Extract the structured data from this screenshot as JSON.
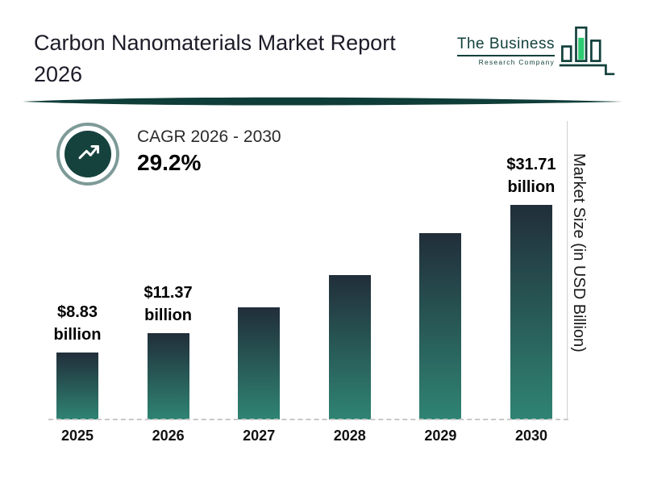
{
  "header": {
    "title": "Carbon Nanomaterials Market Report 2026",
    "logo": {
      "name": "The Business",
      "subname": "Research Company"
    }
  },
  "cagr": {
    "label": "CAGR 2026 - 2030",
    "value": "29.2%"
  },
  "y_axis_label": "Market Size (in USD Billion)",
  "chart_data": {
    "type": "bar",
    "title": "Carbon Nanomaterials Market Report 2026",
    "categories": [
      "2025",
      "2026",
      "2027",
      "2028",
      "2029",
      "2030"
    ],
    "values": [
      8.83,
      11.37,
      14.7,
      19.0,
      24.5,
      31.71
    ],
    "value_labels": [
      {
        "line1": "$8.83",
        "line2": "billion"
      },
      {
        "line1": "$11.37",
        "line2": "billion"
      },
      null,
      null,
      null,
      {
        "line1": "$31.71",
        "line2": "billion"
      }
    ],
    "ylabel": "Market Size (in USD Billion)",
    "ylim": [
      0,
      35
    ],
    "cagr_annotation": "CAGR 2026 - 2030: 29.2%",
    "bar_gradient_top": "#212e3a",
    "bar_gradient_bottom": "#2f8473",
    "legend": "none",
    "grid": "off"
  },
  "colors": {
    "accent_dark_teal": "#16423e",
    "logo_green": "#2ecc71",
    "divider": "#0f3d38",
    "text_dark": "#1c1c28"
  }
}
